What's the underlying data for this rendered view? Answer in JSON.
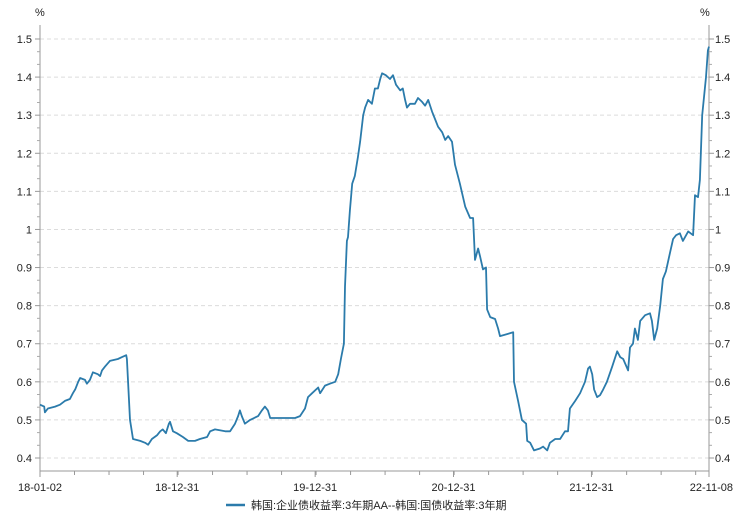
{
  "chart_data": {
    "type": "line",
    "title": "",
    "xlabel": "",
    "ylabel": "%",
    "ylabel_right": "%",
    "x_units": "days since 18-01-02",
    "x_range": [
      0,
      1770
    ],
    "ylim": [
      0.4,
      1.5
    ],
    "y_ticks": [
      0.4,
      0.5,
      0.6,
      0.7,
      0.8,
      0.9,
      1,
      1.1,
      1.2,
      1.3,
      1.4,
      1.5
    ],
    "y_tick_labels": [
      "0.4",
      "0.5",
      "0.6",
      "0.7",
      "0.8",
      "0.9",
      "1",
      "1.1",
      "1.2",
      "1.3",
      "1.4",
      "1.5"
    ],
    "x_ticks": [
      {
        "day": 0,
        "label": "18-01-02"
      },
      {
        "day": 363,
        "label": "18-12-31"
      },
      {
        "day": 728,
        "label": "19-12-31"
      },
      {
        "day": 1094,
        "label": "20-12-31"
      },
      {
        "day": 1459,
        "label": "21-12-31"
      },
      {
        "day": 1770,
        "label": "22-11-08"
      }
    ],
    "grid": true,
    "legend_position": "bottom",
    "color": "#2b7bab",
    "series": [
      {
        "name": "韩国:企业债收益率:3年期AA--韩国:国债收益率:3年期",
        "x": [
          0,
          11,
          13,
          21,
          40,
          53,
          66,
          79,
          87,
          93,
          101,
          106,
          119,
          124,
          132,
          140,
          153,
          159,
          164,
          172,
          185,
          206,
          217,
          228,
          230,
          238,
          246,
          265,
          278,
          286,
          296,
          310,
          318,
          325,
          333,
          341,
          344,
          352,
          362,
          378,
          392,
          410,
          423,
          442,
          450,
          463,
          490,
          503,
          516,
          524,
          529,
          534,
          542,
          556,
          577,
          587,
          595,
          603,
          609,
          635,
          675,
          688,
          701,
          709,
          720,
          736,
          741,
          754,
          767,
          781,
          789,
          796,
          804,
          807,
          812,
          815,
          820,
          826,
          833,
          841,
          847,
          855,
          860,
          868,
          878,
          886,
          894,
          900,
          905,
          915,
          926,
          934,
          942,
          953,
          960,
          966,
          971,
          979,
          992,
          1000,
          1011,
          1019,
          1027,
          1037,
          1045,
          1053,
          1064,
          1072,
          1080,
          1090,
          1098,
          1111,
          1125,
          1138,
          1146,
          1151,
          1159,
          1164,
          1172,
          1180,
          1183,
          1191,
          1204,
          1212,
          1217,
          1252,
          1254,
          1265,
          1275,
          1286,
          1289,
          1297,
          1307,
          1323,
          1331,
          1342,
          1349,
          1363,
          1376,
          1389,
          1397,
          1402,
          1416,
          1429,
          1442,
          1450,
          1455,
          1461,
          1466,
          1474,
          1482,
          1490,
          1500,
          1514,
          1527,
          1535,
          1543,
          1556,
          1561,
          1569,
          1574,
          1582,
          1588,
          1601,
          1614,
          1619,
          1625,
          1633,
          1641,
          1648,
          1656,
          1667,
          1675,
          1683,
          1693,
          1701,
          1715,
          1728,
          1733,
          1741,
          1746,
          1752,
          1762,
          1767,
          1770
        ],
        "values": [
          0.54,
          0.535,
          0.52,
          0.53,
          0.535,
          0.54,
          0.55,
          0.555,
          0.57,
          0.58,
          0.6,
          0.61,
          0.605,
          0.595,
          0.605,
          0.625,
          0.62,
          0.615,
          0.63,
          0.64,
          0.655,
          0.66,
          0.665,
          0.67,
          0.66,
          0.5,
          0.45,
          0.445,
          0.44,
          0.435,
          0.45,
          0.46,
          0.47,
          0.475,
          0.465,
          0.49,
          0.495,
          0.47,
          0.465,
          0.455,
          0.445,
          0.445,
          0.45,
          0.455,
          0.47,
          0.475,
          0.47,
          0.47,
          0.49,
          0.51,
          0.525,
          0.51,
          0.49,
          0.5,
          0.51,
          0.525,
          0.535,
          0.525,
          0.505,
          0.505,
          0.505,
          0.51,
          0.53,
          0.56,
          0.57,
          0.585,
          0.57,
          0.59,
          0.595,
          0.6,
          0.62,
          0.66,
          0.7,
          0.85,
          0.97,
          0.98,
          1.05,
          1.12,
          1.14,
          1.19,
          1.23,
          1.3,
          1.32,
          1.34,
          1.33,
          1.37,
          1.37,
          1.395,
          1.41,
          1.405,
          1.395,
          1.405,
          1.38,
          1.365,
          1.37,
          1.34,
          1.32,
          1.33,
          1.33,
          1.345,
          1.335,
          1.325,
          1.34,
          1.31,
          1.29,
          1.27,
          1.255,
          1.235,
          1.245,
          1.23,
          1.17,
          1.12,
          1.06,
          1.03,
          1.03,
          0.92,
          0.95,
          0.93,
          0.895,
          0.9,
          0.79,
          0.77,
          0.765,
          0.74,
          0.72,
          0.73,
          0.6,
          0.55,
          0.5,
          0.49,
          0.445,
          0.44,
          0.42,
          0.425,
          0.43,
          0.42,
          0.44,
          0.45,
          0.45,
          0.47,
          0.47,
          0.53,
          0.55,
          0.57,
          0.6,
          0.635,
          0.64,
          0.62,
          0.58,
          0.56,
          0.565,
          0.58,
          0.6,
          0.64,
          0.68,
          0.665,
          0.66,
          0.63,
          0.69,
          0.7,
          0.74,
          0.71,
          0.76,
          0.775,
          0.78,
          0.76,
          0.71,
          0.74,
          0.8,
          0.87,
          0.89,
          0.94,
          0.975,
          0.985,
          0.99,
          0.97,
          0.995,
          0.985,
          1.09,
          1.085,
          1.13,
          1.3,
          1.4,
          1.47,
          1.48
        ]
      }
    ]
  }
}
